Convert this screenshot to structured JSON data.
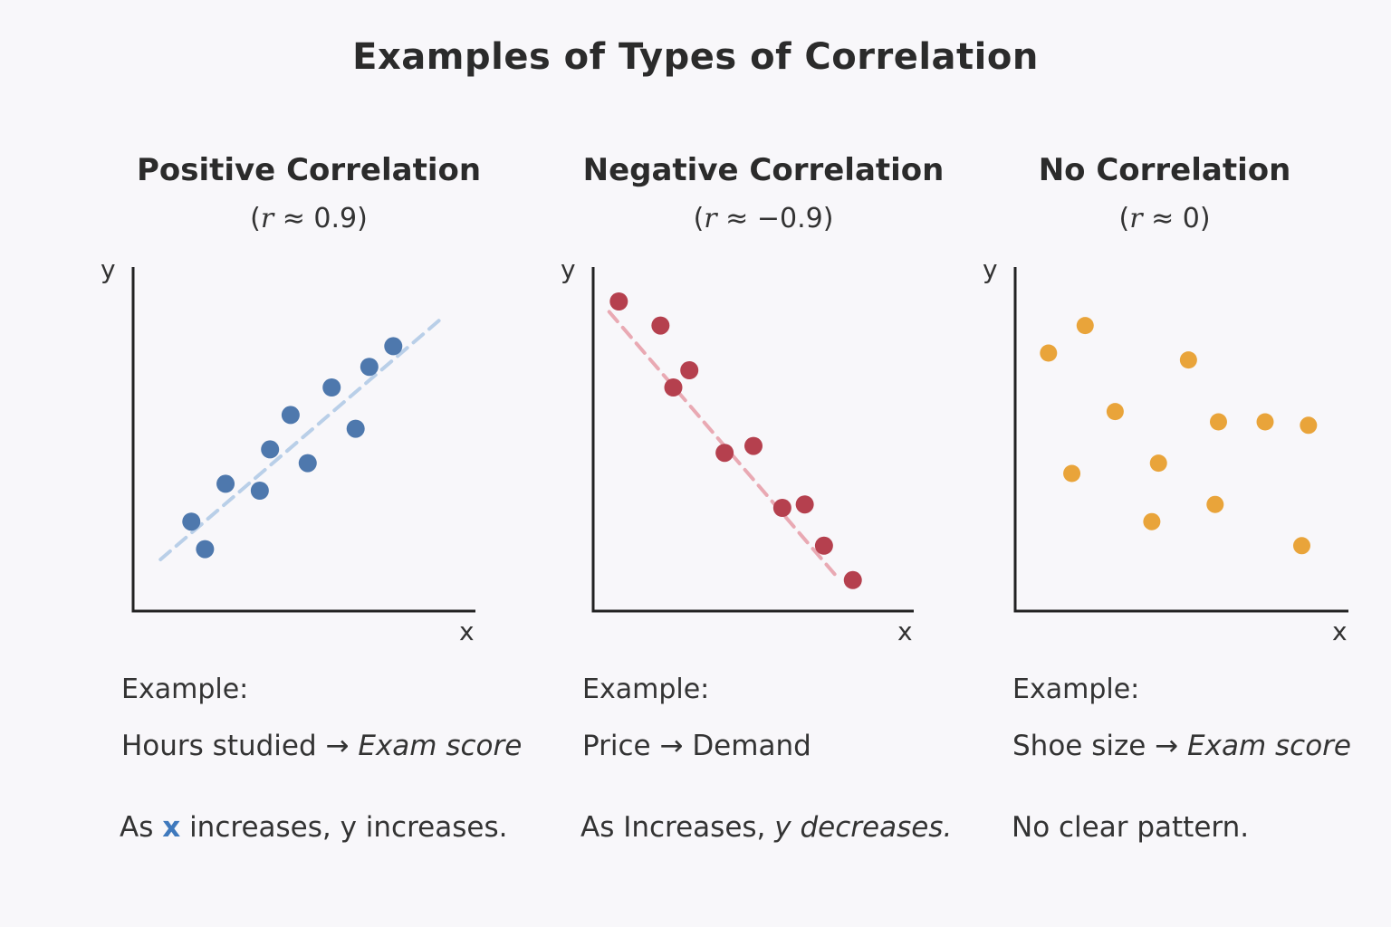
{
  "title": "Examples of Types of Correlation",
  "panels": [
    {
      "heading": "Positive Correlation",
      "r_open": "(",
      "r_symbol": "r",
      "r_rest": " ≈  0.9)",
      "example_label": "Example:",
      "example_left": "Hours studied → ",
      "example_right": "Exam score",
      "note_a": "As ",
      "note_x": "x",
      "note_b": " increases, y increases."
    },
    {
      "heading": "Negative Correlation",
      "r_open": "(",
      "r_symbol": "r",
      "r_rest": " ≈  −0.9)",
      "example_label": "Example:",
      "example_left": "Price  → ",
      "example_right": "Demand",
      "note_a": "As I",
      "note_b": "ncreases, ",
      "note_c": "y decreases."
    },
    {
      "heading": "No Correlation",
      "r_open": "(",
      "r_symbol": "r",
      "r_rest": " ≈ 0)",
      "example_label": "Example:",
      "example_left": "Shoe size  → ",
      "example_right": "Exam score",
      "note_a": "No clear pattern."
    }
  ],
  "colors": {
    "positive": "#4e78ad",
    "positive_line": "#b9cfe8",
    "negative": "#b5404e",
    "negative_line": "#e9a9b3",
    "none": "#e9a43a",
    "axis": "#222222"
  },
  "chart_data": [
    {
      "type": "scatter",
      "title": "Positive Correlation",
      "xlabel": "x",
      "ylabel": "y",
      "xlim": [
        0,
        10
      ],
      "ylim": [
        0,
        10
      ],
      "trendline": [
        [
          0.8,
          1.5
        ],
        [
          9.0,
          8.5
        ]
      ],
      "x": [
        1.7,
        2.1,
        2.7,
        3.7,
        4.0,
        4.6,
        5.1,
        5.8,
        6.5,
        6.9,
        7.6
      ],
      "y": [
        2.6,
        1.8,
        3.7,
        3.5,
        4.7,
        5.7,
        4.3,
        6.5,
        5.3,
        7.1,
        7.7
      ]
    },
    {
      "type": "scatter",
      "title": "Negative Correlation",
      "xlabel": "x",
      "ylabel": "y",
      "xlim": [
        0,
        10
      ],
      "ylim": [
        0,
        10
      ],
      "trendline": [
        [
          0.5,
          8.7
        ],
        [
          7.6,
          1.0
        ]
      ],
      "x": [
        0.8,
        2.1,
        2.5,
        3.0,
        4.1,
        5.0,
        5.9,
        6.6,
        7.2,
        8.1
      ],
      "y": [
        9.0,
        8.3,
        6.5,
        7.0,
        4.6,
        4.8,
        3.0,
        3.1,
        1.9,
        0.9
      ]
    },
    {
      "type": "scatter",
      "title": "No Correlation",
      "xlabel": "x",
      "ylabel": "y",
      "xlim": [
        0,
        10
      ],
      "ylim": [
        0,
        10
      ],
      "x": [
        1.0,
        1.7,
        2.1,
        3.0,
        4.1,
        4.3,
        5.2,
        6.0,
        6.1,
        7.5,
        8.6,
        8.8
      ],
      "y": [
        7.5,
        4.0,
        8.3,
        5.8,
        2.6,
        4.3,
        7.3,
        3.1,
        5.5,
        5.5,
        1.9,
        5.4
      ]
    }
  ]
}
